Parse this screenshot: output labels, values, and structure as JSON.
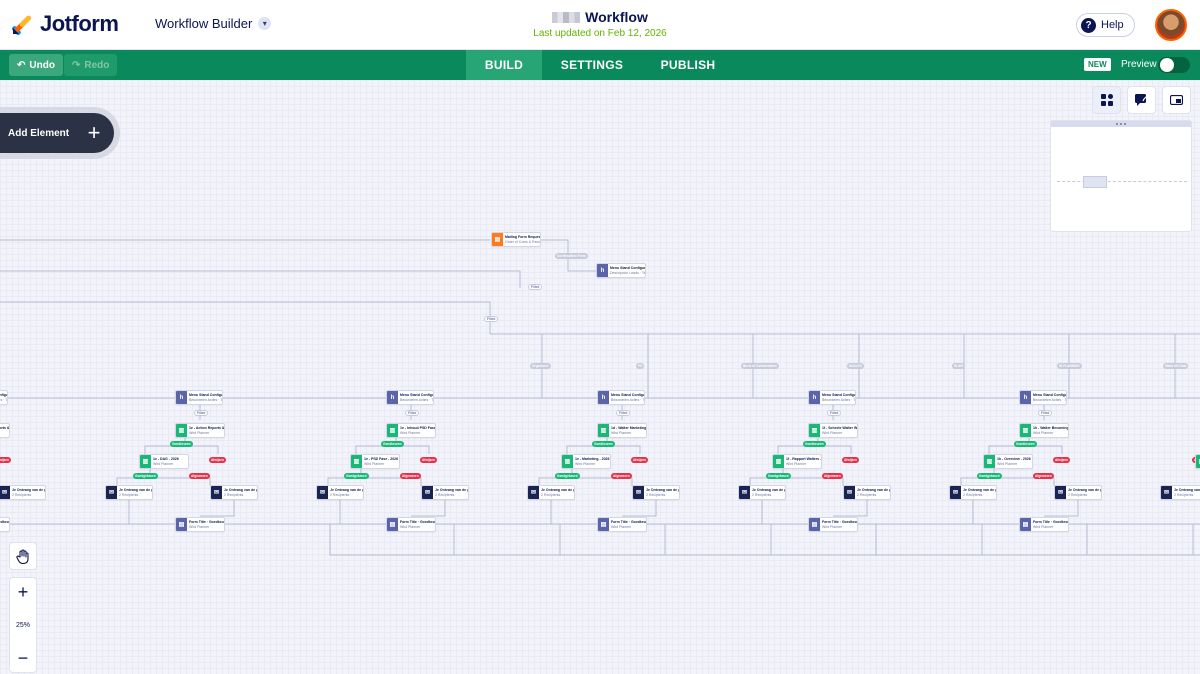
{
  "header": {
    "brand": "Jotform",
    "builder_switch": "Workflow Builder",
    "title": "Workflow",
    "subtitle": "Last updated on Feb 12, 2026",
    "help": "Help"
  },
  "toolbar": {
    "undo": "Undo",
    "redo": "Redo",
    "tabs": [
      "BUILD",
      "SETTINGS",
      "PUBLISH"
    ],
    "active_tab": "BUILD",
    "new_badge": "NEW",
    "preview": "Preview"
  },
  "canvas": {
    "add_element": "Add Element",
    "zoom": "25%",
    "zoom_in": "+",
    "zoom_out": "−",
    "view_icons": [
      "apps-icon",
      "add-comment-icon",
      "minimap-icon"
    ]
  },
  "colors": {
    "brand_green": "#0a8a5c",
    "navy": "#0a1551",
    "accent_orange": "#ff6100",
    "success": "#18b877",
    "danger": "#e5334b"
  },
  "flow": {
    "start_node": {
      "title": "Mailing Form Request an...",
      "subtitle": "Order of Coins & Recogn..."
    },
    "top_pills": [
      "Confirmation Form",
      "Filled",
      "Filled"
    ],
    "top_right_node": {
      "title": "Menu Stand Configuración",
      "subtitle": "Descripción Leads · Te Plum..."
    },
    "branch_pills": [
      "Organiseer",
      "PD",
      "Burst of Collaboration",
      "ANALYS",
      "SLIDE",
      "IN PLANNING",
      "Malta UN Data"
    ],
    "column_nodes": [
      {
        "head": "Menu Stand Configuración",
        "head_sub": "Beoordelen Acties · To...",
        "mid": "1e - Action Reports & Company",
        "mid_sub": "Wird Planner",
        "low": "1e - DAG - 2026",
        "low_sub": "Wird Planner"
      },
      {
        "head": "Menu Stand Configuración",
        "head_sub": "Beoordelen Acties · To...",
        "mid": "1e - Inhoud PSD Fase",
        "mid_sub": "Wird Planner",
        "low": "1e - PSD Fase - 2026",
        "low_sub": "Wird Planner"
      },
      {
        "head": "Menu Stand Configuración",
        "head_sub": "Beoordelen Acties · To...",
        "mid": "1d - Walter Marketing",
        "mid_sub": "Wird Planner",
        "low": "1e - Marketing - 2026",
        "low_sub": "Wird Planner"
      },
      {
        "head": "Menu Stand Configuración",
        "head_sub": "Beoordelen Acties · To...",
        "mid": "1f - Scheele Walter Walters",
        "mid_sub": "Wird Planner",
        "low": "1f - Rapport Walters - 2026",
        "low_sub": "Wird Planner"
      },
      {
        "head": "Menu Stand Configuración",
        "head_sub": "Beoordelen Acties · To...",
        "mid": "1h - Walter Becoming",
        "mid_sub": "Wird Planner",
        "low": "1h - Overview - 2026",
        "low_sub": "Wird Planner"
      }
    ],
    "column_pill_filled": "Filled",
    "approve_pill": "Goedkeuren",
    "reject_pill": "Afwijzen",
    "approved_pill": "Goedgekeurd",
    "rejected_pill": "Afgewezen",
    "notify_node": {
      "title": "Je Ontvang van de goedkeuring",
      "subtitle": "2 Recipients"
    },
    "end_node": {
      "title": "Form Title · Goedkeuringe...",
      "subtitle": "Wird Planner"
    }
  }
}
